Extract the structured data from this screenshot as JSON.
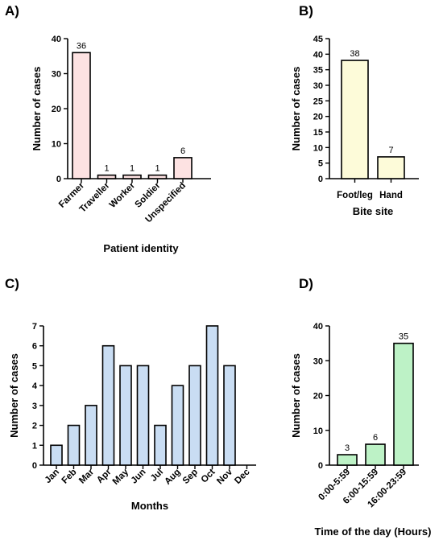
{
  "chart_data": [
    {
      "panel": "A)",
      "type": "bar",
      "categories": [
        "Farmer",
        "Traveller",
        "Worker",
        "Soldier",
        "Unspecified"
      ],
      "values": [
        36,
        1,
        1,
        1,
        6
      ],
      "data_labels": [
        "36",
        "1",
        "1",
        "1",
        "6"
      ],
      "xlabel": "Patient identity",
      "ylabel": "Number of cases",
      "ylim": [
        0,
        40
      ],
      "yticks": [
        0,
        10,
        20,
        30,
        40
      ],
      "bar_color": "#fde2e2",
      "rotated_category_labels": true,
      "grid": false
    },
    {
      "panel": "B)",
      "type": "bar",
      "categories": [
        "Foot/leg",
        "Hand"
      ],
      "values": [
        38,
        7
      ],
      "data_labels": [
        "38",
        "7"
      ],
      "xlabel": "Bite site",
      "ylabel": "Number of cases",
      "ylim": [
        0,
        45
      ],
      "yticks": [
        0,
        5,
        10,
        15,
        20,
        25,
        30,
        35,
        40,
        45
      ],
      "bar_color": "#fdfbd9",
      "rotated_category_labels": false,
      "grid": false
    },
    {
      "panel": "C)",
      "type": "bar",
      "categories": [
        "Jan",
        "Feb",
        "Mar",
        "Apr",
        "May",
        "Jun",
        "Jul",
        "Aug",
        "Sep",
        "Oct",
        "Nov",
        "Dec"
      ],
      "values": [
        1,
        2,
        3,
        6,
        5,
        5,
        2,
        4,
        5,
        7,
        5,
        0
      ],
      "data_labels": [],
      "xlabel": "Months",
      "ylabel": "Number of cases",
      "ylim": [
        0,
        7
      ],
      "yticks": [
        0,
        1,
        2,
        3,
        4,
        5,
        6,
        7
      ],
      "bar_color": "#c9ddf3",
      "rotated_category_labels": true,
      "grid": false
    },
    {
      "panel": "D)",
      "type": "bar",
      "categories": [
        "0:00-5:59",
        "6:00-15:59",
        "16:00-23:59"
      ],
      "values": [
        3,
        6,
        35
      ],
      "data_labels": [
        "3",
        "6",
        "35"
      ],
      "xlabel": "Time of the day (Hours)",
      "ylabel": "Number of cases",
      "ylim": [
        0,
        40
      ],
      "yticks": [
        0,
        10,
        20,
        30,
        40
      ],
      "bar_color": "#bdf2c6",
      "rotated_category_labels": true,
      "grid": false
    }
  ]
}
